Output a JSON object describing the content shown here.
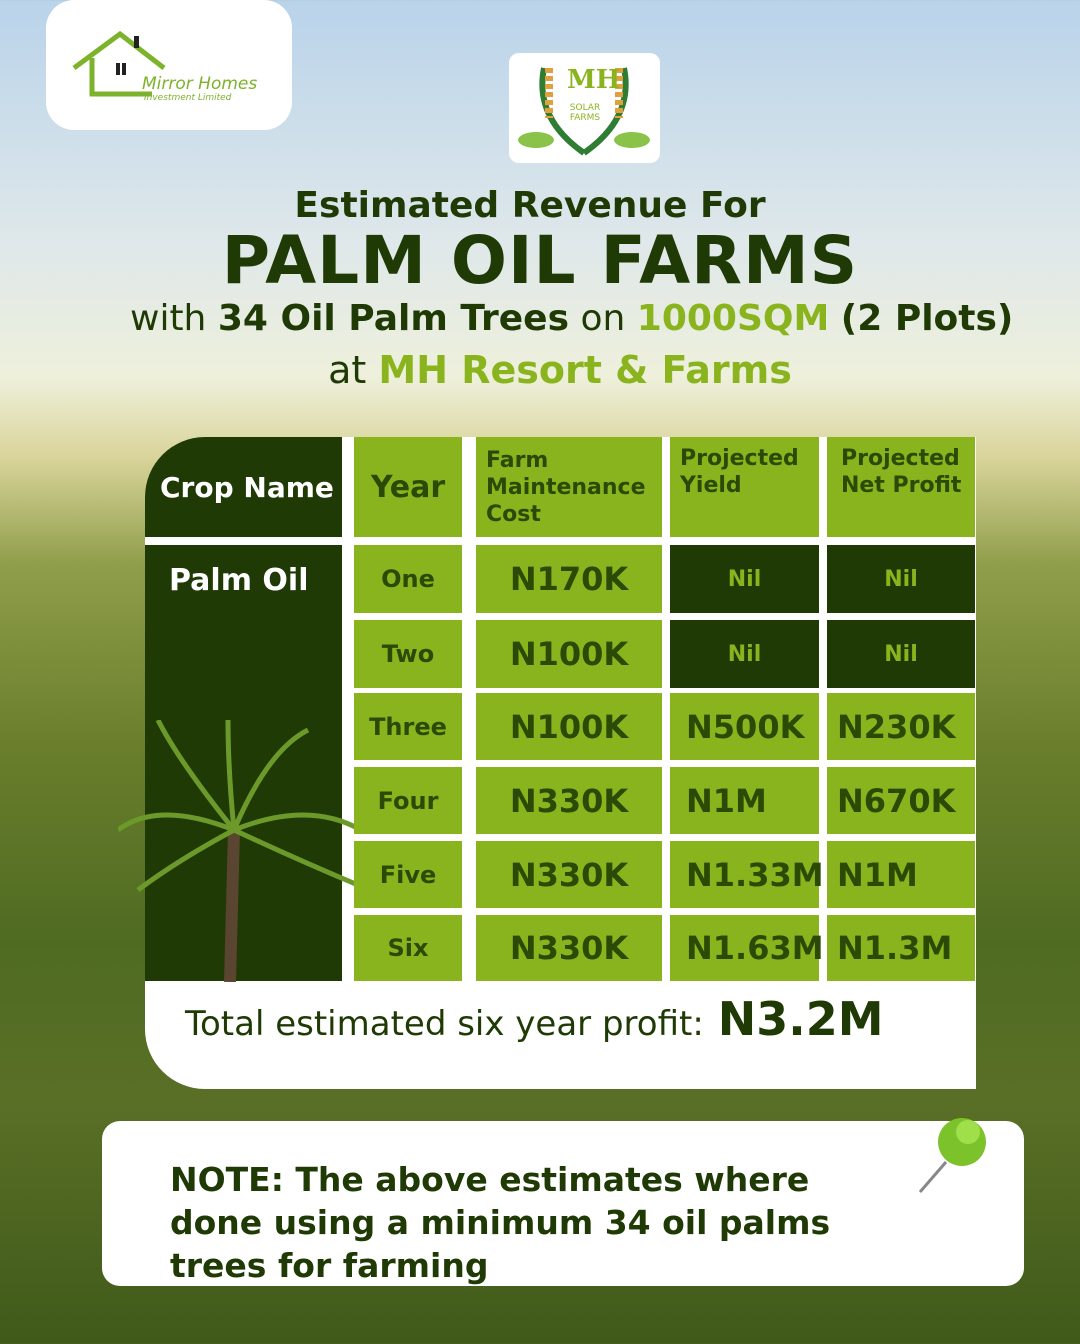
{
  "logos": {
    "mirror_homes": {
      "name": "Mirror Homes",
      "sub": "Investment Limited"
    },
    "mh_solar_farms": {
      "mark": "MH",
      "sub": "SOLAR FARMS"
    }
  },
  "title": {
    "line1": "Estimated Revenue For",
    "line2": "PALM OIL FARMS",
    "line3_pre": "with",
    "line3_trees": "34 Oil Palm Trees",
    "line3_on": "on",
    "line3_area": "1000SQM",
    "line3_plots": "(2 Plots)",
    "line4_pre": "at",
    "line4_place": "MH Resort & Farms"
  },
  "table": {
    "headers": [
      "Crop Name",
      "Year",
      "Farm Maintenance Cost",
      "Projected Yield",
      "Projected Net Profit"
    ],
    "crop": "Palm Oil",
    "rows": [
      {
        "year": "One",
        "cost": "N170K",
        "yield": "Nil",
        "profit": "Nil"
      },
      {
        "year": "Two",
        "cost": "N100K",
        "yield": "Nil",
        "profit": "Nil"
      },
      {
        "year": "Three",
        "cost": "N100K",
        "yield": "N500K",
        "profit": "N230K"
      },
      {
        "year": "Four",
        "cost": "N330K",
        "yield": "N1M",
        "profit": "N670K"
      },
      {
        "year": "Five",
        "cost": "N330K",
        "yield": "N1.33M",
        "profit": "N1M"
      },
      {
        "year": "Six",
        "cost": "N330K",
        "yield": "N1.63M",
        "profit": "N1.3M"
      }
    ],
    "total_label": "Total estimated six year profit:",
    "total_value": "N3.2M"
  },
  "note": "NOTE: The above estimates where done using a minimum 34 oil palms trees for farming",
  "colors": {
    "dark_green": "#1f3a05",
    "light_green": "#8ab41e"
  }
}
